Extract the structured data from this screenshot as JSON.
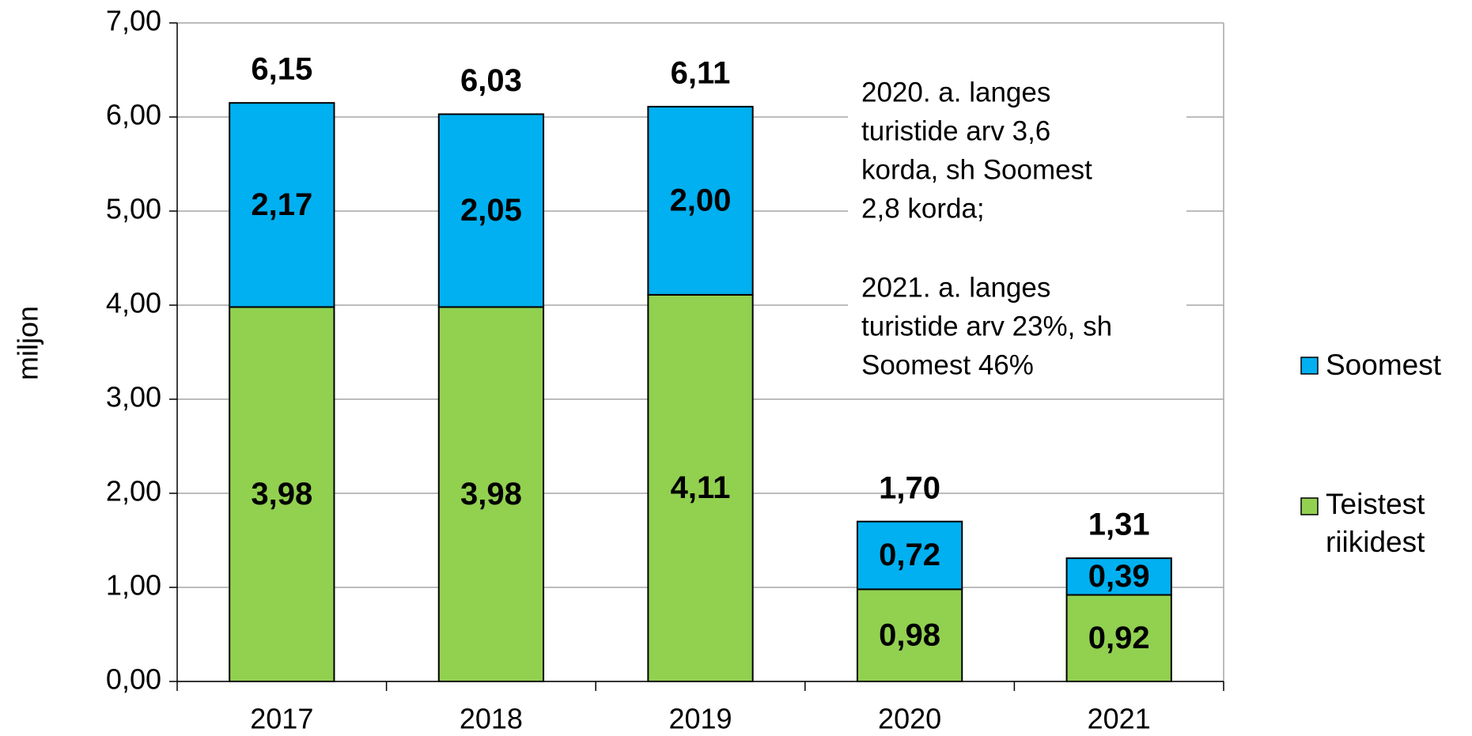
{
  "chart_data": {
    "type": "stacked_bar",
    "ylabel": "miljon",
    "categories": [
      "2017",
      "2018",
      "2019",
      "2020",
      "2021"
    ],
    "series": [
      {
        "name": "Soomest",
        "color": "#00b0f0",
        "values": [
          2.17,
          2.05,
          2.0,
          0.72,
          0.39
        ],
        "value_labels": [
          "2,17",
          "2,05",
          "2,00",
          "0,72",
          "0,39"
        ]
      },
      {
        "name": "Teistest riikidest",
        "name_lines": [
          "Teistest",
          "riikidest"
        ],
        "color": "#92d050",
        "values": [
          3.98,
          3.98,
          4.11,
          0.98,
          0.92
        ],
        "value_labels": [
          "3,98",
          "3,98",
          "4,11",
          "0,98",
          "0,92"
        ]
      }
    ],
    "totals": [
      6.15,
      6.03,
      6.11,
      1.7,
      1.31
    ],
    "total_labels": [
      "6,15",
      "6,03",
      "6,11",
      "1,70",
      "1,31"
    ],
    "ylim": [
      0,
      7
    ],
    "yticks": [
      {
        "value": 0,
        "label": "0,00"
      },
      {
        "value": 1,
        "label": "1,00"
      },
      {
        "value": 2,
        "label": "2,00"
      },
      {
        "value": 3,
        "label": "3,00"
      },
      {
        "value": 4,
        "label": "4,00"
      },
      {
        "value": 5,
        "label": "5,00"
      },
      {
        "value": 6,
        "label": "6,00"
      },
      {
        "value": 7,
        "label": "7,00"
      }
    ],
    "grid": true,
    "legend": "right",
    "annotation": [
      [
        "2020. a. langes",
        "turistide arv 3,6",
        "korda, sh Soomest",
        "2,8 korda;"
      ],
      [
        "2021. a. langes",
        "turistide arv 23%, sh",
        "Soomest 46%"
      ]
    ]
  }
}
